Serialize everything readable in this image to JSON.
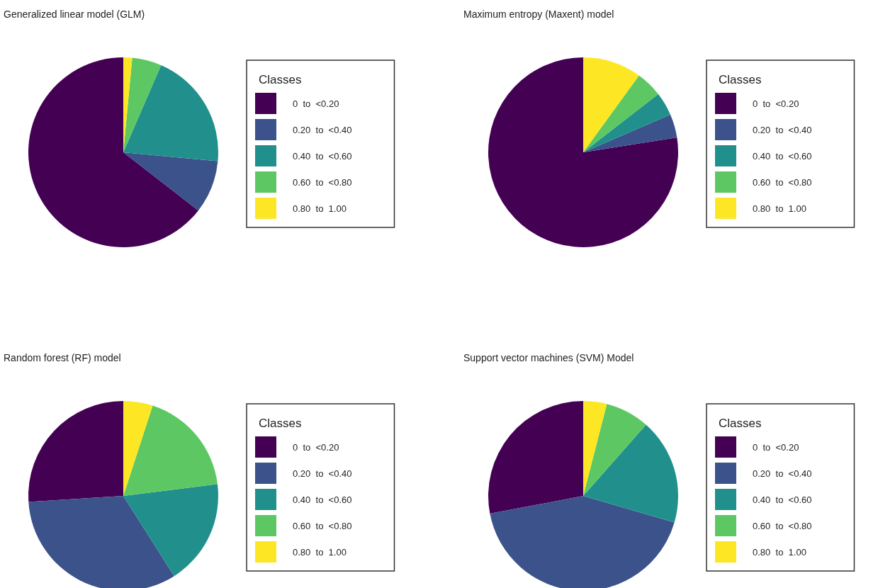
{
  "chart_data": [
    {
      "type": "pie",
      "title": "Generalized linear model (GLM)",
      "legend_title": "Classes",
      "legend": "right",
      "categories": [
        "0  to  <0.20",
        "0.20  to  <0.40",
        "0.40  to  <0.60",
        "0.60  to  <0.80",
        "0.80  to  1.00"
      ],
      "values": [
        64.5,
        9,
        20,
        5,
        1.5
      ],
      "colors": [
        "#440154",
        "#3b528b",
        "#21908c",
        "#5dc863",
        "#fde725"
      ]
    },
    {
      "type": "pie",
      "title": "Maximum entropy (Maxent) model",
      "legend_title": "Classes",
      "legend": "right",
      "categories": [
        "0  to  <0.20",
        "0.20  to  <0.40",
        "0.40  to  <0.60",
        "0.60  to  <0.80",
        "0.80  to  1.00"
      ],
      "values": [
        77.5,
        4,
        4,
        4.5,
        10
      ],
      "colors": [
        "#440154",
        "#3b528b",
        "#21908c",
        "#5dc863",
        "#fde725"
      ]
    },
    {
      "type": "pie",
      "title": "Random forest (RF) model",
      "legend_title": "Classes",
      "legend": "right",
      "categories": [
        "0  to  <0.20",
        "0.20  to  <0.40",
        "0.40  to  <0.60",
        "0.60  to  <0.80",
        "0.80  to  1.00"
      ],
      "values": [
        26,
        33,
        18,
        18,
        5
      ],
      "colors": [
        "#440154",
        "#3b528b",
        "#21908c",
        "#5dc863",
        "#fde725"
      ]
    },
    {
      "type": "pie",
      "title": "Support vector machines (SVM) Model",
      "legend_title": "Classes",
      "legend": "right",
      "categories": [
        "0  to  <0.20",
        "0.20  to  <0.40",
        "0.40  to  <0.60",
        "0.60  to  <0.80",
        "0.80  to  1.00"
      ],
      "values": [
        28,
        42.5,
        18,
        7.5,
        4
      ],
      "colors": [
        "#440154",
        "#3b528b",
        "#21908c",
        "#5dc863",
        "#fde725"
      ]
    }
  ]
}
